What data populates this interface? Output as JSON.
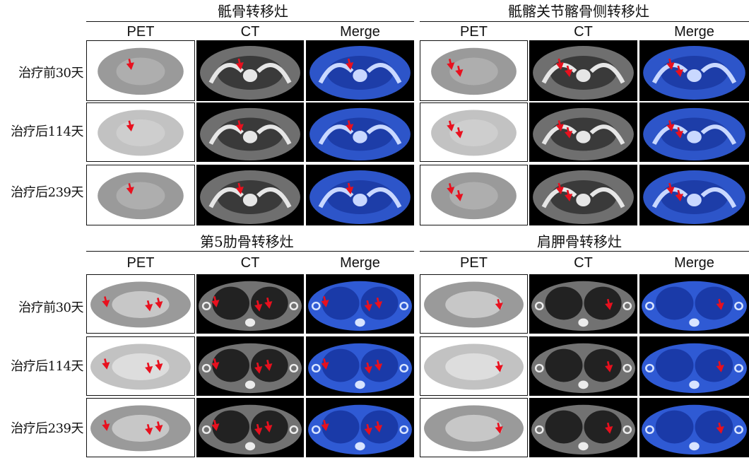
{
  "panels": [
    {
      "title": "骶骨转移灶"
    },
    {
      "title": "骶髂关节髂骨侧转移灶"
    },
    {
      "title": "第5肋骨转移灶"
    },
    {
      "title": "肩胛骨转移灶"
    }
  ],
  "columns": [
    "PET",
    "CT",
    "Merge"
  ],
  "rows": [
    "治疗前30天",
    "治疗后114天",
    "治疗后239天"
  ],
  "colors": {
    "arrow": "#e8101e",
    "merge_blue": "#1f4fc8",
    "pet_gray": "#6a6a6a"
  }
}
